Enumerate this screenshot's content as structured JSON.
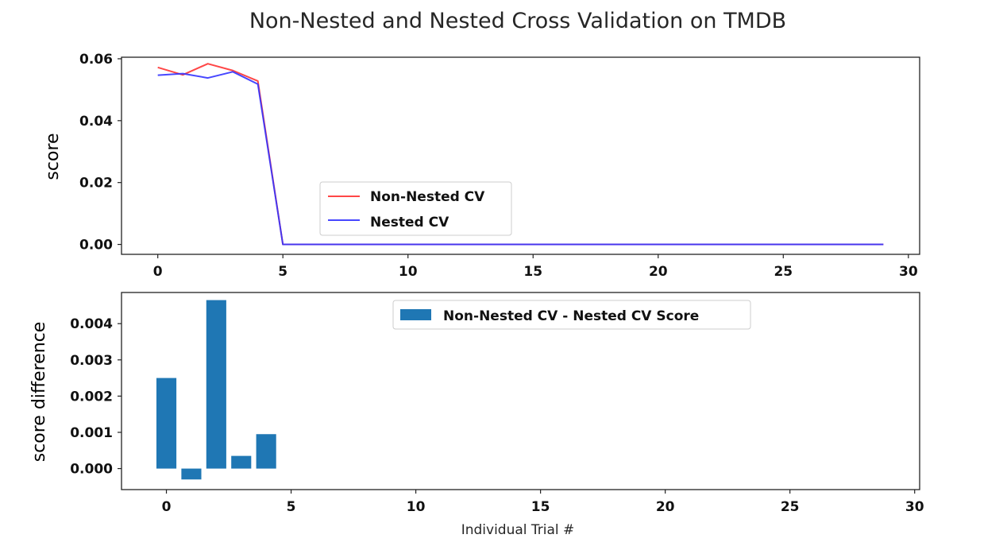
{
  "chart_data": [
    {
      "type": "line",
      "title": "Non-Nested and Nested Cross Validation on TMDB",
      "xlabel": "",
      "ylabel": "score",
      "xlim": [
        -1.45,
        30.45
      ],
      "ylim": [
        -0.0032,
        0.0605
      ],
      "xticks": [
        "0",
        "5",
        "10",
        "15",
        "20",
        "25",
        "30"
      ],
      "yticks": [
        "0.00",
        "0.02",
        "0.04",
        "0.06"
      ],
      "legend_position": "center",
      "grid": false,
      "x": [
        0,
        1,
        2,
        3,
        4,
        5,
        6,
        7,
        8,
        9,
        10,
        11,
        12,
        13,
        14,
        15,
        16,
        17,
        18,
        19,
        20,
        21,
        22,
        23,
        24,
        25,
        26,
        27,
        28,
        29
      ],
      "series": [
        {
          "name": "Non-Nested CV",
          "color": "#ff3333",
          "values": [
            0.0572,
            0.0548,
            0.0584,
            0.0562,
            0.0528,
            0,
            0,
            0,
            0,
            0,
            0,
            0,
            0,
            0,
            0,
            0,
            0,
            0,
            0,
            0,
            0,
            0,
            0,
            0,
            0,
            0,
            0,
            0,
            0,
            0
          ]
        },
        {
          "name": "Nested CV",
          "color": "#3333ff",
          "values": [
            0.0547,
            0.0552,
            0.0538,
            0.0558,
            0.0518,
            0,
            0,
            0,
            0,
            0,
            0,
            0,
            0,
            0,
            0,
            0,
            0,
            0,
            0,
            0,
            0,
            0,
            0,
            0,
            0,
            0,
            0,
            0,
            0,
            0
          ]
        }
      ]
    },
    {
      "type": "bar",
      "title": "",
      "xlabel": "Individual Trial #",
      "ylabel": "score difference",
      "xlim": [
        -1.8,
        30.2
      ],
      "ylim": [
        -0.00058,
        0.00486
      ],
      "xticks": [
        "0",
        "5",
        "10",
        "15",
        "20",
        "25",
        "30"
      ],
      "yticks": [
        "0.000",
        "0.001",
        "0.002",
        "0.003",
        "0.004"
      ],
      "legend_position": "upper center",
      "grid": false,
      "series": [
        {
          "name": "Non-Nested CV - Nested CV Score",
          "color": "#1f77b4",
          "x": [
            0,
            1,
            2,
            3,
            4,
            5,
            6,
            7,
            8,
            9,
            10,
            11,
            12,
            13,
            14,
            15,
            16,
            17,
            18,
            19,
            20,
            21,
            22,
            23,
            24,
            25,
            26,
            27,
            28,
            29
          ],
          "values": [
            0.0025,
            -0.0003,
            0.00465,
            0.00035,
            0.00095,
            0,
            0,
            0,
            0,
            0,
            0,
            0,
            0,
            0,
            0,
            0,
            0,
            0,
            0,
            0,
            0,
            0,
            0,
            0,
            0,
            0,
            0,
            0,
            0,
            0
          ]
        }
      ]
    }
  ]
}
